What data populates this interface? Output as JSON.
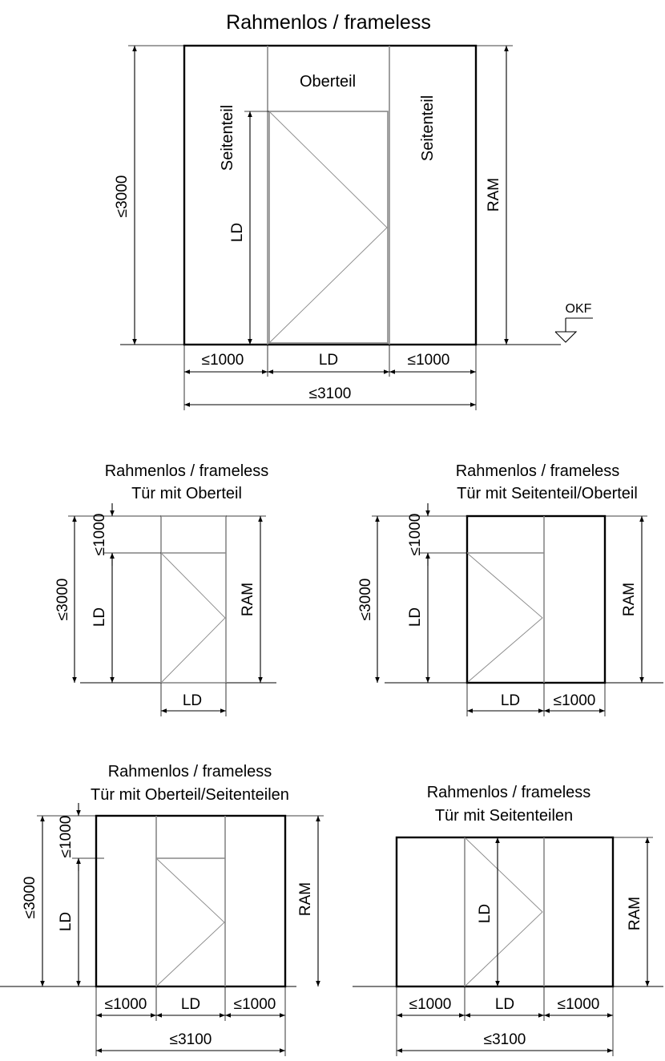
{
  "main": {
    "title": "Rahmenlos / frameless",
    "labels": {
      "sidelight_left": "Seitenteil",
      "sidelight_right": "Seitenteil",
      "transom": "Oberteil",
      "height_max": "≤3000",
      "clear_height": "LD",
      "frame_height": "RAM",
      "floor_level": "OKF"
    },
    "dims": {
      "side_left": "≤1000",
      "clear_width": "LD",
      "side_right": "≤1000",
      "total_width": "≤3100"
    }
  },
  "variant_transom": {
    "title": "Rahmenlos / frameless",
    "subtitle": "Tür mit Oberteil",
    "height_max": "≤3000",
    "transom_height": "≤1000",
    "clear_height": "LD",
    "frame_height": "RAM",
    "clear_width": "LD"
  },
  "variant_side_transom": {
    "title": "Rahmenlos / frameless",
    "subtitle": "Tür mit Seitenteil/Oberteil",
    "height_max": "≤3000",
    "transom_height": "≤1000",
    "clear_height": "LD",
    "frame_height": "RAM",
    "clear_width": "LD",
    "side_width": "≤1000"
  },
  "variant_transom_sides": {
    "title": "Rahmenlos / frameless",
    "subtitle": "Tür mit Oberteil/Seitenteilen",
    "height_max": "≤3000",
    "transom_height": "≤1000",
    "clear_height": "LD",
    "frame_height": "RAM",
    "side_left": "≤1000",
    "clear_width": "LD",
    "side_right": "≤1000",
    "total_width": "≤3100"
  },
  "variant_sides": {
    "title": "Rahmenlos / frameless",
    "subtitle": "Tür mit Seitenteilen",
    "clear_height": "LD",
    "frame_height": "RAM",
    "side_left": "≤1000",
    "clear_width": "LD",
    "side_right": "≤1000",
    "total_width": "≤3100"
  }
}
